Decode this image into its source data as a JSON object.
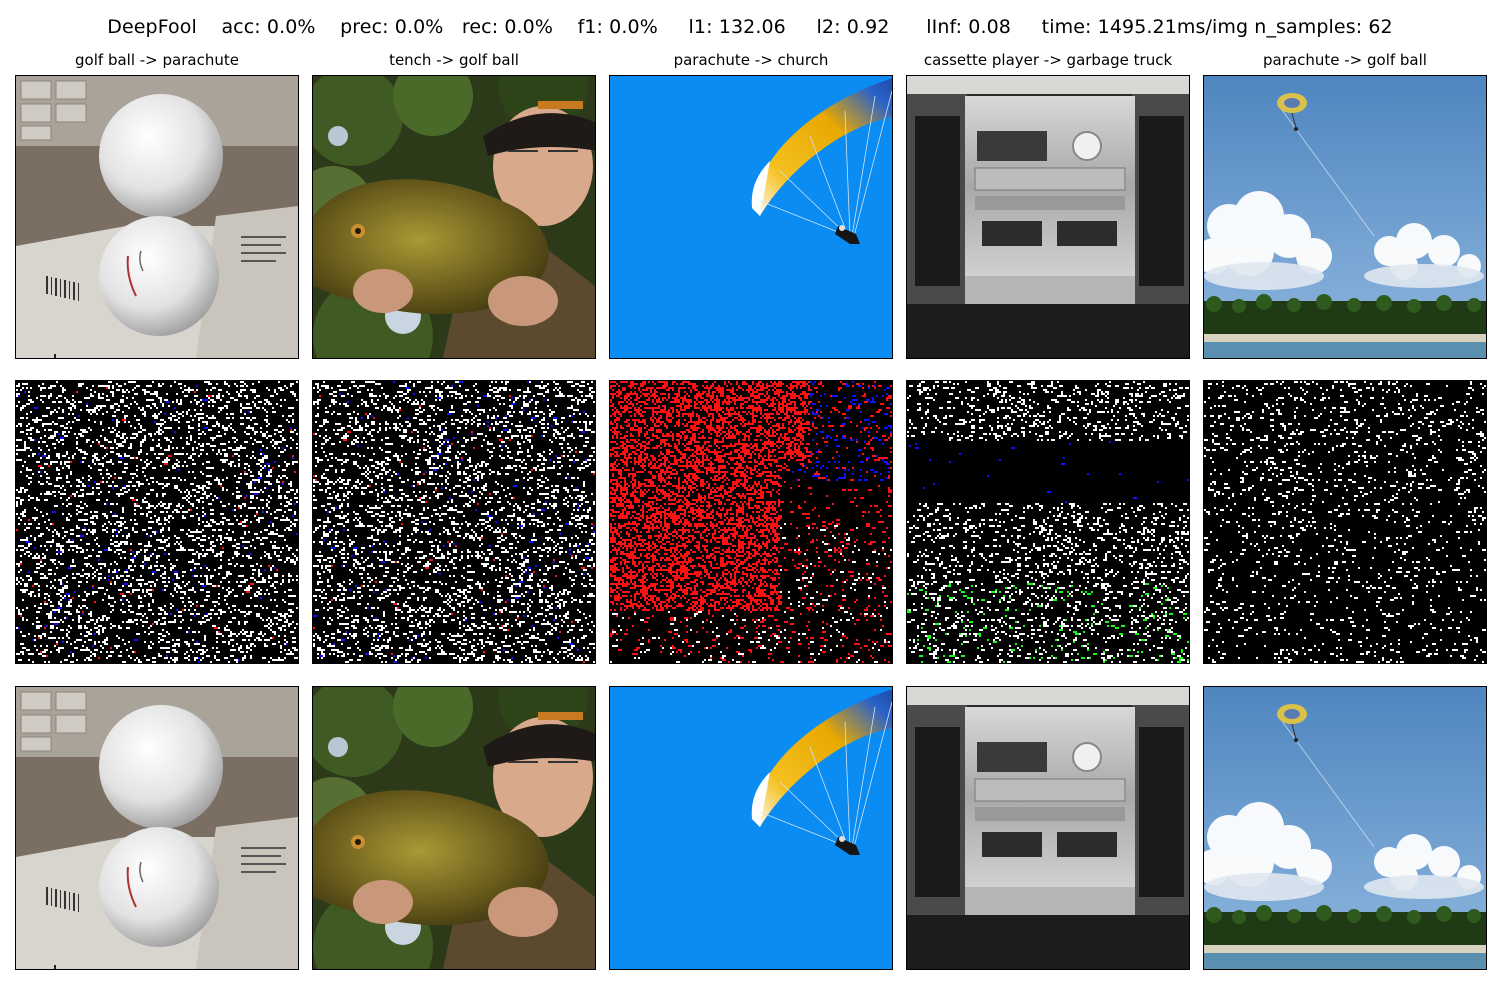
{
  "figure": {
    "suptitle": "DeepFool    acc: 0.0%    prec: 0.0%   rec: 0.0%    f1: 0.0%     l1: 132.06     l2: 0.92      lInf: 0.08     time: 1495.21ms/img n_samples: 62"
  },
  "columns": [
    {
      "title": "golf ball -> parachute",
      "scene": "golf-balls"
    },
    {
      "title": "tench -> golf ball",
      "scene": "fish-man"
    },
    {
      "title": "parachute -> church",
      "scene": "paraglider"
    },
    {
      "title": "cassette player -> garbage truck",
      "scene": "boombox"
    },
    {
      "title": "parachute -> golf ball",
      "scene": "parasail-beach"
    }
  ],
  "rows": [
    "original",
    "perturbation",
    "adversarial"
  ],
  "perturbation_colors": {
    "background": "#000000",
    "white": "#ffffff",
    "red": "#ff1010",
    "blue": "#1010ff",
    "green": "#10ff10"
  }
}
